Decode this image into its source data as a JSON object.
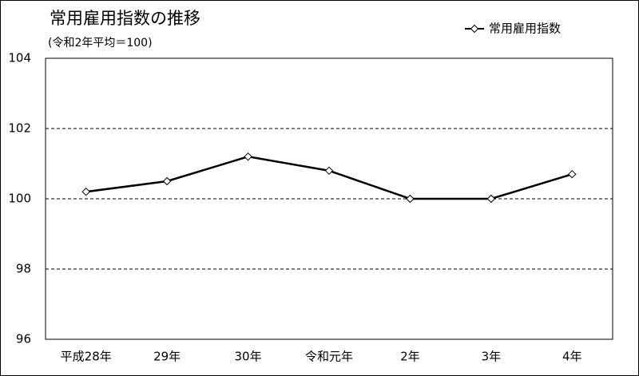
{
  "chart_data": {
    "type": "line",
    "title": "常用雇用指数の推移",
    "subtitle": "(令和2年平均＝100)",
    "categories": [
      "平成28年",
      "29年",
      "30年",
      "令和元年",
      "2年",
      "3年",
      "4年"
    ],
    "series": [
      {
        "name": "常用雇用指数",
        "color": "#000000",
        "values": [
          100.2,
          100.5,
          101.2,
          100.8,
          100.0,
          100.0,
          100.7
        ]
      }
    ],
    "ylim": [
      96,
      104
    ],
    "yticks": [
      96,
      98,
      100,
      102,
      104
    ],
    "grid": true,
    "legend": "top-right"
  }
}
